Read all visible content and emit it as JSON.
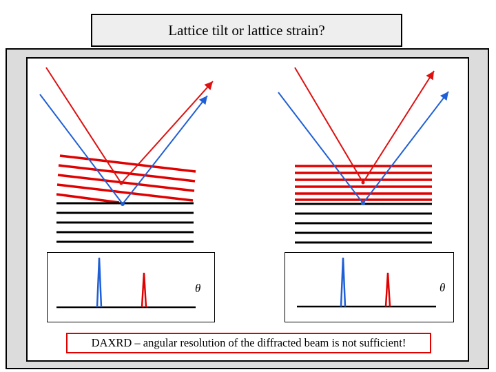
{
  "title": "Lattice tilt or lattice strain?",
  "caption": "DAXRD – angular resolution of the diffracted beam is not sufficient!",
  "theta_symbol": "θ",
  "colors": {
    "incident_diffracted_red": "#dd1111",
    "incident_diffracted_blue": "#1f5fd6",
    "strained_layer": "#e00000",
    "substrate": "#000000",
    "outer_frame": "#dcdcdc",
    "title_box": "#eeeeee"
  },
  "panels": [
    {
      "id": "tilt",
      "layer_lines": 5,
      "substrate_lines": 5,
      "peaks": [
        "blue",
        "red"
      ]
    },
    {
      "id": "strain",
      "layer_lines": 6,
      "substrate_lines": 5,
      "peaks": [
        "blue",
        "red"
      ]
    }
  ]
}
